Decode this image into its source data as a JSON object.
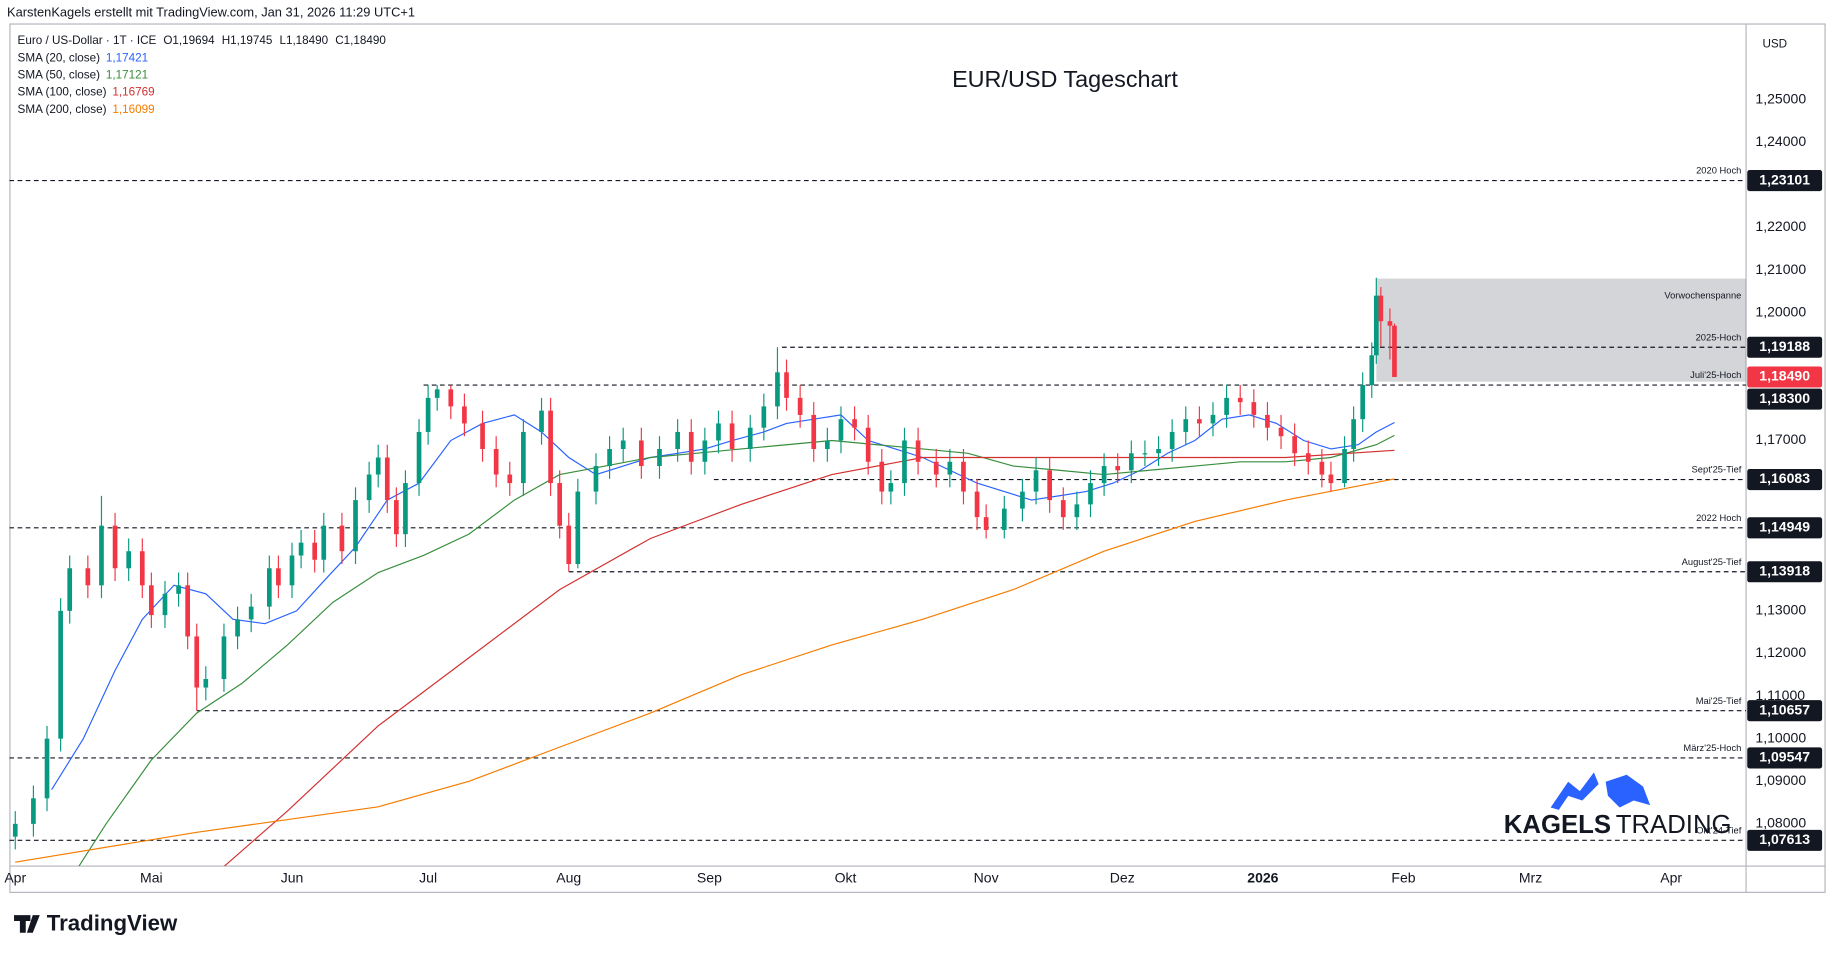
{
  "header": {
    "author": "KarstenKagels erstellt mit TradingView.com, Jan 31, 2026 11:29 UTC+1",
    "symbol": "Euro / US-Dollar · 1T · ICE",
    "ohlc": [
      "O1,19694",
      "H1,19745",
      "L1,18490",
      "C1,18490"
    ],
    "brand": "TradingView"
  },
  "chart_data": {
    "type": "candlestick",
    "title": "EUR/USD Tageschart",
    "currency": "USD",
    "up_color": "#089981",
    "down_color": "#f23645",
    "x": [
      0,
      4,
      7,
      10,
      12,
      16,
      19,
      22,
      25,
      28,
      30,
      33,
      36,
      38,
      40,
      42,
      46,
      49,
      52,
      56,
      58,
      61,
      63,
      66,
      68,
      72,
      75,
      78,
      80,
      82,
      84,
      86,
      89,
      91,
      93,
      96,
      99,
      103,
      106,
      109,
      112,
      116,
      118,
      120,
      122,
      124,
      128,
      131,
      134,
      138,
      142,
      146,
      149,
      152,
      155,
      158,
      162,
      165,
      168,
      170,
      173,
      176,
      179,
      182,
      185,
      188,
      191,
      193,
      196,
      199,
      203,
      206,
      209,
      212,
      214,
      218,
      222,
      225,
      228,
      231,
      234,
      237,
      240,
      243,
      246,
      249,
      252,
      255,
      258,
      261,
      264,
      267,
      270,
      273,
      276,
      279,
      282,
      285,
      288,
      290,
      293,
      295,
      297,
      299,
      300,
      301,
      303,
      304
    ],
    "open": [
      1.077,
      1.08,
      1.086,
      1.1,
      1.13,
      1.14,
      1.136,
      1.15,
      1.14,
      1.144,
      1.136,
      1.129,
      1.134,
      1.136,
      1.124,
      1.112,
      1.114,
      1.124,
      1.128,
      1.131,
      1.14,
      1.136,
      1.143,
      1.146,
      1.142,
      1.15,
      1.144,
      1.156,
      1.162,
      1.166,
      1.156,
      1.148,
      1.16,
      1.172,
      1.18,
      1.182,
      1.178,
      1.174,
      1.168,
      1.162,
      1.16,
      1.172,
      1.177,
      1.16,
      1.15,
      1.141,
      1.158,
      1.164,
      1.168,
      1.17,
      1.164,
      1.168,
      1.172,
      1.165,
      1.17,
      1.174,
      1.168,
      1.173,
      1.178,
      1.186,
      1.18,
      1.176,
      1.168,
      1.17,
      1.175,
      1.173,
      1.165,
      1.158,
      1.16,
      1.17,
      1.165,
      1.162,
      1.165,
      1.158,
      1.152,
      1.149,
      1.154,
      1.158,
      1.163,
      1.156,
      1.152,
      1.155,
      1.16,
      1.164,
      1.163,
      1.167,
      1.167,
      1.168,
      1.172,
      1.175,
      1.174,
      1.176,
      1.18,
      1.179,
      1.176,
      1.173,
      1.171,
      1.167,
      1.165,
      1.162,
      1.16,
      1.168,
      1.175,
      1.183,
      1.19,
      1.204,
      1.198,
      1.19694
    ],
    "high": [
      1.083,
      1.089,
      1.103,
      1.133,
      1.143,
      1.143,
      1.157,
      1.153,
      1.147,
      1.147,
      1.139,
      1.137,
      1.139,
      1.139,
      1.127,
      1.117,
      1.127,
      1.131,
      1.134,
      1.143,
      1.143,
      1.146,
      1.149,
      1.149,
      1.153,
      1.153,
      1.159,
      1.165,
      1.169,
      1.169,
      1.159,
      1.163,
      1.175,
      1.183,
      1.183,
      1.183,
      1.181,
      1.177,
      1.171,
      1.165,
      1.175,
      1.18,
      1.18,
      1.163,
      1.153,
      1.161,
      1.167,
      1.171,
      1.173,
      1.173,
      1.171,
      1.175,
      1.175,
      1.173,
      1.177,
      1.177,
      1.176,
      1.181,
      1.1919,
      1.189,
      1.183,
      1.179,
      1.173,
      1.178,
      1.178,
      1.176,
      1.168,
      1.163,
      1.173,
      1.173,
      1.168,
      1.168,
      1.168,
      1.161,
      1.155,
      1.157,
      1.161,
      1.166,
      1.166,
      1.159,
      1.158,
      1.163,
      1.167,
      1.167,
      1.17,
      1.17,
      1.171,
      1.175,
      1.178,
      1.178,
      1.179,
      1.183,
      1.183,
      1.182,
      1.179,
      1.176,
      1.174,
      1.17,
      1.168,
      1.165,
      1.171,
      1.178,
      1.186,
      1.193,
      1.2082,
      1.206,
      1.201,
      1.19745
    ],
    "low": [
      1.074,
      1.077,
      1.083,
      1.097,
      1.127,
      1.133,
      1.133,
      1.137,
      1.137,
      1.133,
      1.126,
      1.126,
      1.131,
      1.121,
      1.1066,
      1.109,
      1.111,
      1.121,
      1.125,
      1.128,
      1.133,
      1.133,
      1.14,
      1.139,
      1.139,
      1.141,
      1.141,
      1.153,
      1.159,
      1.153,
      1.145,
      1.145,
      1.157,
      1.169,
      1.177,
      1.175,
      1.171,
      1.165,
      1.159,
      1.157,
      1.157,
      1.169,
      1.157,
      1.147,
      1.1392,
      1.14,
      1.155,
      1.161,
      1.165,
      1.161,
      1.161,
      1.165,
      1.162,
      1.162,
      1.167,
      1.165,
      1.165,
      1.17,
      1.175,
      1.177,
      1.173,
      1.165,
      1.165,
      1.167,
      1.17,
      1.162,
      1.155,
      1.155,
      1.157,
      1.162,
      1.159,
      1.159,
      1.155,
      1.149,
      1.147,
      1.147,
      1.151,
      1.155,
      1.153,
      1.149,
      1.149,
      1.152,
      1.157,
      1.16,
      1.16,
      1.164,
      1.164,
      1.165,
      1.169,
      1.171,
      1.171,
      1.173,
      1.176,
      1.173,
      1.17,
      1.168,
      1.164,
      1.162,
      1.159,
      1.158,
      1.159,
      1.165,
      1.172,
      1.18,
      1.188,
      1.192,
      1.189,
      1.1849
    ],
    "close": [
      1.08,
      1.086,
      1.1,
      1.13,
      1.14,
      1.136,
      1.15,
      1.14,
      1.144,
      1.136,
      1.129,
      1.134,
      1.136,
      1.124,
      1.112,
      1.114,
      1.124,
      1.128,
      1.131,
      1.14,
      1.136,
      1.143,
      1.146,
      1.142,
      1.15,
      1.144,
      1.156,
      1.162,
      1.166,
      1.156,
      1.148,
      1.16,
      1.172,
      1.18,
      1.182,
      1.178,
      1.174,
      1.168,
      1.162,
      1.16,
      1.172,
      1.177,
      1.16,
      1.15,
      1.141,
      1.158,
      1.164,
      1.168,
      1.17,
      1.164,
      1.168,
      1.172,
      1.165,
      1.17,
      1.174,
      1.168,
      1.173,
      1.178,
      1.186,
      1.18,
      1.176,
      1.168,
      1.17,
      1.175,
      1.173,
      1.165,
      1.158,
      1.16,
      1.17,
      1.165,
      1.162,
      1.165,
      1.158,
      1.152,
      1.149,
      1.154,
      1.158,
      1.163,
      1.156,
      1.152,
      1.155,
      1.16,
      1.164,
      1.163,
      1.167,
      1.167,
      1.168,
      1.172,
      1.175,
      1.174,
      1.176,
      1.18,
      1.179,
      1.176,
      1.173,
      1.171,
      1.167,
      1.165,
      1.162,
      1.16,
      1.168,
      1.175,
      1.183,
      1.19,
      1.204,
      1.198,
      1.19694,
      1.1849
    ],
    "last_price_label": "1,18490",
    "xlim": [
      -1.3,
      381.5
    ],
    "ylim": [
      1.0701,
      1.2679
    ],
    "xticks": [
      {
        "value": 0,
        "label": "Apr"
      },
      {
        "value": 30,
        "label": "Mai"
      },
      {
        "value": 61,
        "label": "Jun"
      },
      {
        "value": 91,
        "label": "Jul"
      },
      {
        "value": 122,
        "label": "Aug"
      },
      {
        "value": 153,
        "label": "Sep"
      },
      {
        "value": 183,
        "label": "Okt"
      },
      {
        "value": 214,
        "label": "Nov"
      },
      {
        "value": 244,
        "label": "Dez"
      },
      {
        "value": 275,
        "label": "2026"
      },
      {
        "value": 306,
        "label": "Feb"
      },
      {
        "value": 334,
        "label": "Mrz"
      },
      {
        "value": 365,
        "label": "Apr"
      }
    ],
    "yticks": [
      {
        "value": 1.08,
        "label": "1,08000"
      },
      {
        "value": 1.09,
        "label": "1,09000"
      },
      {
        "value": 1.1,
        "label": "1,10000"
      },
      {
        "value": 1.11,
        "label": "1,11000"
      },
      {
        "value": 1.12,
        "label": "1,12000"
      },
      {
        "value": 1.13,
        "label": "1,13000"
      },
      {
        "value": 1.17,
        "label": "1,17000"
      },
      {
        "value": 1.2,
        "label": "1,20000"
      },
      {
        "value": 1.21,
        "label": "1,21000"
      },
      {
        "value": 1.22,
        "label": "1,22000"
      },
      {
        "value": 1.24,
        "label": "1,24000"
      },
      {
        "value": 1.25,
        "label": "1,25000"
      }
    ],
    "grid": false,
    "series": [
      {
        "name": "SMA (20, close)",
        "color": "#2962ff",
        "last_label": "1,17421",
        "x": [
          8,
          15,
          22,
          28,
          35,
          42,
          48,
          55,
          62,
          68,
          75,
          82,
          89,
          96,
          103,
          110,
          116,
          122,
          128,
          134,
          140,
          146,
          152,
          158,
          165,
          170,
          176,
          182,
          188,
          194,
          200,
          206,
          212,
          218,
          224,
          230,
          236,
          242,
          248,
          254,
          260,
          266,
          272,
          278,
          284,
          290,
          296,
          300,
          304
        ],
        "values": [
          1.088,
          1.1,
          1.116,
          1.128,
          1.136,
          1.134,
          1.128,
          1.127,
          1.13,
          1.137,
          1.145,
          1.156,
          1.16,
          1.17,
          1.174,
          1.176,
          1.172,
          1.166,
          1.162,
          1.164,
          1.166,
          1.167,
          1.168,
          1.17,
          1.172,
          1.174,
          1.175,
          1.176,
          1.17,
          1.168,
          1.166,
          1.163,
          1.16,
          1.158,
          1.156,
          1.157,
          1.158,
          1.16,
          1.163,
          1.167,
          1.17,
          1.175,
          1.176,
          1.174,
          1.17,
          1.168,
          1.169,
          1.172,
          1.17421
        ]
      },
      {
        "name": "SMA (50, close)",
        "color": "#388e3c",
        "last_label": "1,17121",
        "x": [
          14,
          20,
          30,
          40,
          50,
          60,
          70,
          80,
          90,
          100,
          110,
          120,
          130,
          140,
          150,
          160,
          170,
          180,
          190,
          200,
          210,
          220,
          230,
          240,
          250,
          260,
          270,
          280,
          290,
          300,
          304
        ],
        "values": [
          1.07,
          1.08,
          1.095,
          1.106,
          1.113,
          1.122,
          1.132,
          1.139,
          1.143,
          1.148,
          1.156,
          1.162,
          1.164,
          1.166,
          1.167,
          1.168,
          1.169,
          1.17,
          1.169,
          1.168,
          1.167,
          1.164,
          1.163,
          1.162,
          1.163,
          1.164,
          1.165,
          1.165,
          1.166,
          1.169,
          1.17121
        ]
      },
      {
        "name": "SMA (100, close)",
        "color": "#d32f2f",
        "last_label": "1,16769",
        "x": [
          46,
          60,
          80,
          100,
          120,
          140,
          160,
          180,
          200,
          220,
          240,
          260,
          280,
          304
        ],
        "values": [
          1.07,
          1.083,
          1.103,
          1.119,
          1.135,
          1.147,
          1.155,
          1.162,
          1.166,
          1.166,
          1.166,
          1.166,
          1.166,
          1.16769
        ]
      },
      {
        "name": "SMA (200, close)",
        "color": "#f57c00",
        "last_label": "1,16099",
        "x": [
          0,
          40,
          80,
          100,
          120,
          140,
          160,
          180,
          200,
          220,
          240,
          260,
          280,
          304
        ],
        "values": [
          1.071,
          1.078,
          1.084,
          1.09,
          1.098,
          1.106,
          1.115,
          1.122,
          1.128,
          1.135,
          1.144,
          1.151,
          1.156,
          1.16099
        ]
      }
    ],
    "levels": [
      {
        "value": 1.23101,
        "label": "1,23101",
        "name": "2020 Hoch",
        "start": null
      },
      {
        "value": 1.19188,
        "label": "1,19188",
        "name": "2025-Hoch",
        "start": 169
      },
      {
        "value": 1.183,
        "label": "1,18300",
        "name": "Juli'25-Hoch",
        "start": 90
      },
      {
        "value": 1.16083,
        "label": "1,16083",
        "name": "Sept'25-Tief",
        "start": 154
      },
      {
        "value": 1.14949,
        "label": "1,14949",
        "name": "2022 Hoch",
        "start": null
      },
      {
        "value": 1.13918,
        "label": "1,13918",
        "name": "August'25-Tief",
        "start": 122
      },
      {
        "value": 1.10657,
        "label": "1,10657",
        "name": "Mai'25-Tief",
        "start": 40
      },
      {
        "value": 1.09547,
        "label": "1,09547",
        "name": "März'25-Hoch",
        "start": null
      },
      {
        "value": 1.07613,
        "label": "1,07613",
        "name": "Okt'24-Tief",
        "start": null
      }
    ],
    "zone": {
      "name": "Vorwochenspanne",
      "start": 300,
      "low": 1.1838,
      "high": 1.208
    },
    "branding": [
      "KAGELS",
      "TRADING"
    ]
  }
}
